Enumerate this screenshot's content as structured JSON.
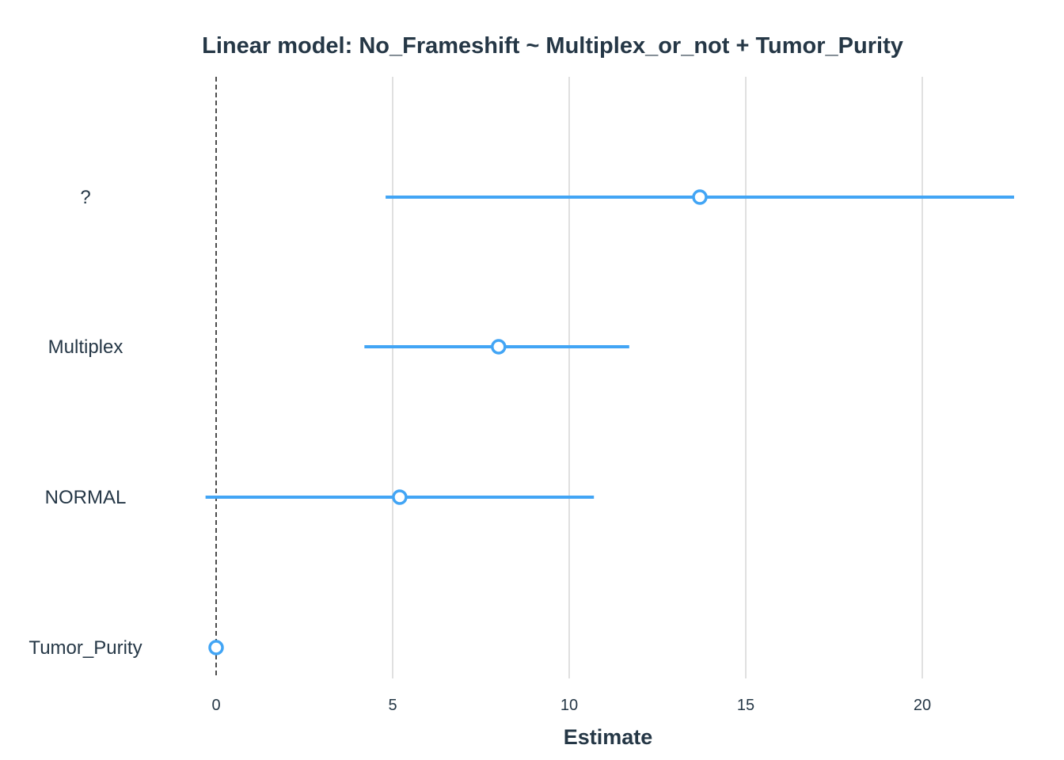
{
  "chart_data": {
    "type": "forest",
    "title": "Linear model: No_Frameshift ~ Multiplex_or_not + Tumor_Purity",
    "xlabel": "Estimate",
    "ylabel": "",
    "xlim": [
      -0.6,
      22.6
    ],
    "xticks": [
      0,
      5,
      10,
      15,
      20
    ],
    "reference_line": 0,
    "grid": "vertical",
    "color": "#42A5F5",
    "terms": [
      {
        "label": "?",
        "estimate": 13.7,
        "ci_low": 4.8,
        "ci_high": 22.6
      },
      {
        "label": "Multiplex",
        "estimate": 8.0,
        "ci_low": 4.2,
        "ci_high": 11.7
      },
      {
        "label": "NORMAL",
        "estimate": 5.2,
        "ci_low": -0.3,
        "ci_high": 10.7
      },
      {
        "label": "Tumor_Purity",
        "estimate": 0.0,
        "ci_low": 0.0,
        "ci_high": 0.0
      }
    ]
  }
}
